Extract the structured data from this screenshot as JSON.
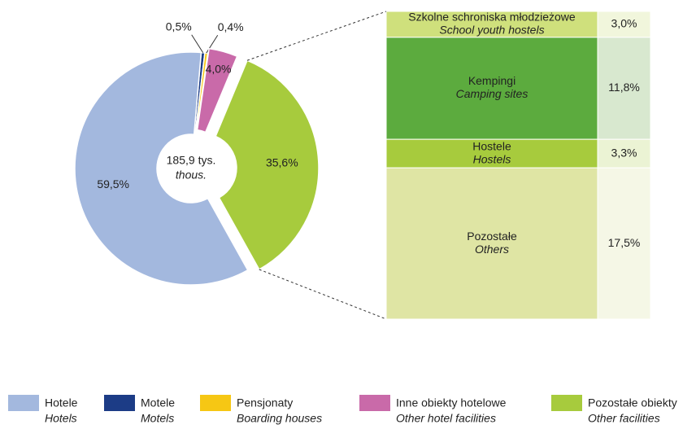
{
  "chart_data": {
    "type": "pie",
    "labels": [
      "Hotele",
      "Motele",
      "Pensjonaty",
      "Inne obiekty hotelowe",
      "Pozostałe obiekty"
    ],
    "labels_en": [
      "Hotels",
      "Motels",
      "Boarding houses",
      "Other hotel facilities",
      "Other facilities"
    ],
    "values": [
      59.5,
      0.5,
      0.4,
      4.0,
      35.6
    ],
    "value_labels": [
      "59,5%",
      "0,5%",
      "0,4%",
      "4,0%",
      "35,6%"
    ],
    "colors": [
      "#a3b8de",
      "#1c3c86",
      "#f6c714",
      "#c96aa9",
      "#a7cb3d"
    ],
    "center_label": [
      "185,9 tys.",
      "thous."
    ],
    "breakdown": {
      "labels": [
        "Szkolne schroniska młodzieżowe",
        "Kempingi",
        "Hostele",
        "Pozostałe"
      ],
      "labels_en": [
        "School youth hostels",
        "Camping sites",
        "Hostels",
        "Others"
      ],
      "values": [
        3.0,
        11.8,
        3.3,
        17.5
      ],
      "value_labels": [
        "3,0%",
        "11,8%",
        "3,3%",
        "17,5%"
      ],
      "colors": [
        "#cfe07c",
        "#5cab3e",
        "#a7cb3d",
        "#dfe5a4"
      ],
      "value_colors": [
        "#f1f6dc",
        "#d8e8cf",
        "#ebf3d4",
        "#f5f7e6"
      ]
    }
  }
}
